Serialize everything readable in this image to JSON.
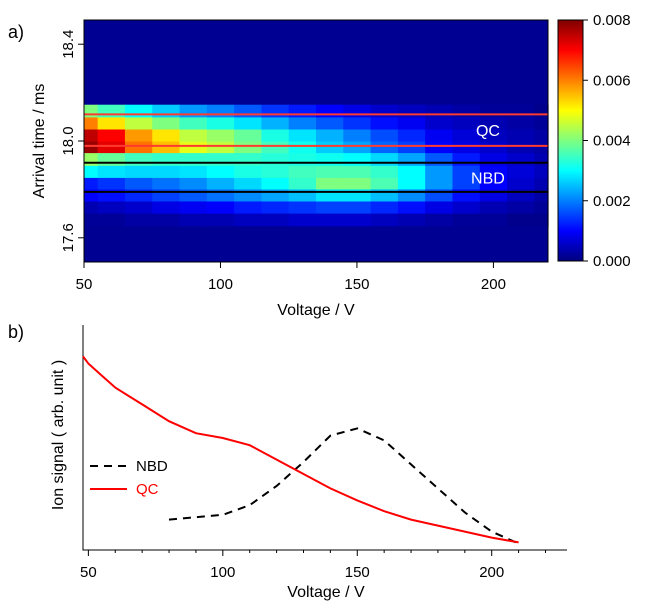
{
  "chart_data": [
    {
      "type": "heatmap",
      "panel_label": "a)",
      "xlabel": "Voltage / V",
      "ylabel": "Arrival time / ms",
      "xlim": [
        50,
        220
      ],
      "ylim": [
        17.5,
        18.5
      ],
      "x_ticks": [
        50,
        100,
        150,
        200
      ],
      "y_ticks": [
        17.6,
        18.0,
        18.4
      ],
      "colorbar": {
        "range": [
          0,
          0.008
        ],
        "ticks": [
          "0.000",
          "0.002",
          "0.004",
          "0.006",
          "0.008"
        ],
        "colormap": [
          "#00007f",
          "#0000ff",
          "#007fff",
          "#00ffff",
          "#7fff7f",
          "#ffff00",
          "#ff7f00",
          "#ff0000",
          "#7f0000"
        ]
      },
      "x_bins": [
        50,
        55,
        65,
        75,
        85,
        95,
        105,
        115,
        125,
        135,
        145,
        155,
        165,
        175,
        185,
        195,
        205,
        215,
        220
      ],
      "time_centers": [
        17.975,
        18.025,
        18.075,
        18.125,
        17.825,
        17.875,
        17.925,
        17.775,
        17.725,
        17.675
      ],
      "intensity": [
        [
          0.0078,
          0.0072,
          0.0061,
          0.0055,
          0.0048,
          0.0045,
          0.004,
          0.0035,
          0.0031,
          0.0026,
          0.0023,
          0.0018,
          0.0015,
          0.001,
          0.0008,
          0.0006,
          0.0004,
          0.0003
        ],
        [
          0.0075,
          0.007,
          0.0058,
          0.0052,
          0.0045,
          0.0042,
          0.0038,
          0.0032,
          0.0028,
          0.0024,
          0.002,
          0.0016,
          0.0013,
          0.0009,
          0.0007,
          0.0005,
          0.0004,
          0.0003
        ],
        [
          0.006,
          0.0052,
          0.0045,
          0.004,
          0.0035,
          0.0032,
          0.0028,
          0.0024,
          0.002,
          0.0017,
          0.0014,
          0.0011,
          0.0009,
          0.0006,
          0.0005,
          0.0004,
          0.0003,
          0.0002
        ],
        [
          0.004,
          0.0035,
          0.003,
          0.0026,
          0.0022,
          0.002,
          0.0017,
          0.0014,
          0.0012,
          0.001,
          0.0008,
          0.0006,
          0.0005,
          0.0004,
          0.0003,
          0.0002,
          0.0002,
          0.0001
        ],
        [
          0.0012,
          0.0014,
          0.0017,
          0.0019,
          0.0021,
          0.0024,
          0.0027,
          0.003,
          0.0034,
          0.004,
          0.004,
          0.0036,
          0.003,
          0.0022,
          0.0015,
          0.001,
          0.0006,
          0.0004
        ],
        [
          0.003,
          0.0028,
          0.0027,
          0.0027,
          0.0028,
          0.003,
          0.0032,
          0.0033,
          0.0035,
          0.0036,
          0.0036,
          0.0034,
          0.003,
          0.0022,
          0.0015,
          0.001,
          0.0007,
          0.0005
        ],
        [
          0.0042,
          0.0038,
          0.0035,
          0.0034,
          0.0034,
          0.0034,
          0.0034,
          0.0033,
          0.0032,
          0.0031,
          0.003,
          0.0027,
          0.0023,
          0.0017,
          0.0012,
          0.0008,
          0.0006,
          0.0004
        ],
        [
          0.001,
          0.0011,
          0.0013,
          0.0015,
          0.0017,
          0.0019,
          0.0021,
          0.0023,
          0.0025,
          0.0028,
          0.0028,
          0.0025,
          0.0021,
          0.0016,
          0.0011,
          0.0008,
          0.0005,
          0.0003
        ],
        [
          0.0004,
          0.0005,
          0.0006,
          0.0008,
          0.0009,
          0.001,
          0.0012,
          0.0013,
          0.0014,
          0.0015,
          0.0015,
          0.0013,
          0.0011,
          0.0008,
          0.0006,
          0.0004,
          0.0003,
          0.0002
        ],
        [
          0.0002,
          0.0002,
          0.0003,
          0.0003,
          0.0004,
          0.0004,
          0.0005,
          0.0005,
          0.0006,
          0.0006,
          0.0006,
          0.0005,
          0.0004,
          0.0003,
          0.0002,
          0.0002,
          0.0001,
          0.0001
        ]
      ],
      "gates": [
        {
          "label": "QC",
          "color": "#ff3b30",
          "bounds": [
            17.98,
            18.11
          ]
        },
        {
          "label": "NBD",
          "color": "#000000",
          "bounds": [
            17.79,
            17.91
          ]
        }
      ],
      "gate_label_color": "#ffffff"
    },
    {
      "type": "line",
      "panel_label": "b)",
      "xlabel": "Voltage / V",
      "ylabel": "Ion signal ( arb. unit )",
      "xlim": [
        48,
        228
      ],
      "ylim": [
        0,
        1
      ],
      "x_ticks": [
        50,
        100,
        150,
        200
      ],
      "y_ticks_visible": false,
      "legend_position": "middle-left",
      "series": [
        {
          "name": "NBD",
          "color": "#000000",
          "dash": true,
          "x": [
            80,
            90,
            100,
            110,
            120,
            130,
            140,
            150,
            160,
            170,
            180,
            190,
            200,
            210
          ],
          "y": [
            0.11,
            0.12,
            0.13,
            0.17,
            0.25,
            0.35,
            0.46,
            0.49,
            0.44,
            0.34,
            0.24,
            0.14,
            0.06,
            0.01
          ]
        },
        {
          "name": "QC",
          "color": "#ff0000",
          "dash": false,
          "x": [
            48,
            50,
            55,
            60,
            70,
            80,
            90,
            100,
            110,
            120,
            130,
            140,
            150,
            160,
            170,
            180,
            190,
            200,
            210
          ],
          "y": [
            0.79,
            0.76,
            0.71,
            0.66,
            0.59,
            0.52,
            0.47,
            0.45,
            0.42,
            0.36,
            0.3,
            0.24,
            0.19,
            0.145,
            0.11,
            0.085,
            0.06,
            0.035,
            0.015
          ]
        }
      ]
    }
  ]
}
